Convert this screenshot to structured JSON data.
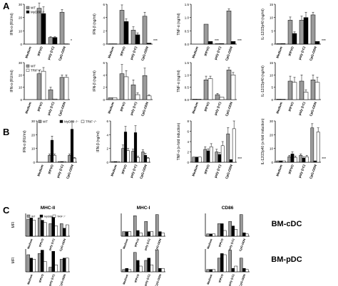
{
  "panels": [
    {
      "label": "A"
    },
    {
      "label": "B"
    },
    {
      "label": "C"
    }
  ],
  "chart_data": [
    {
      "id": "A1",
      "type": "bar",
      "ylabel": "IFN-α (RU/ml)",
      "ylim": [
        0,
        30
      ],
      "yticks": [
        "0",
        "10",
        "20",
        "30"
      ],
      "yticks_vals": [
        0,
        10,
        20,
        30
      ],
      "categories": [
        "Medium",
        "IPPVO",
        "poly (I:C)",
        "CpG-ODN"
      ],
      "legend": [
        "WT",
        "MyD88⁻/⁻"
      ],
      "series": [
        {
          "name": "WT",
          "values": [
            0,
            27,
            5,
            24
          ],
          "err": [
            0,
            4,
            0.5,
            2
          ]
        },
        {
          "name": "MyD88⁻/⁻",
          "values": [
            0,
            23,
            5,
            0.2
          ],
          "err": [
            0,
            5,
            0.5,
            0
          ]
        }
      ],
      "annot": {
        "3": "*"
      }
    },
    {
      "id": "A2",
      "type": "bar",
      "ylabel": "IFN-β (ng/ml)",
      "ylim": [
        0,
        6
      ],
      "yticks": [
        "0",
        "2",
        "4",
        "6"
      ],
      "yticks_vals": [
        0,
        2,
        4,
        6
      ],
      "categories": [
        "Medium",
        "IPPVO",
        "poly (I:C)",
        "CpG-ODN"
      ],
      "series": [
        {
          "name": "WT",
          "values": [
            0.05,
            5.1,
            2.1,
            4.2
          ],
          "err": [
            0,
            0.8,
            0.5,
            0.6
          ]
        },
        {
          "name": "MyD88⁻/⁻",
          "values": [
            0.05,
            3.4,
            1.4,
            0.15
          ],
          "err": [
            0,
            0.4,
            0.3,
            0
          ]
        }
      ],
      "annot": {
        "3": "***"
      }
    },
    {
      "id": "A3",
      "type": "bar",
      "ylabel": "TNF-α (ng/ml)",
      "ylim": [
        0,
        1.5
      ],
      "yticks": [
        "0.0",
        "0.5",
        "1.0",
        "1.5"
      ],
      "yticks_vals": [
        0,
        0.5,
        1.0,
        1.5
      ],
      "categories": [
        "Medium",
        "IPPVO",
        "poly (I:C)",
        "CpG-ODN"
      ],
      "series": [
        {
          "name": "WT",
          "values": [
            0,
            0.75,
            0.02,
            1.25
          ],
          "err": [
            0,
            0,
            0,
            0.08
          ]
        },
        {
          "name": "MyD88⁻/⁻",
          "values": [
            0,
            0.1,
            0.02,
            0.1
          ],
          "err": [
            0,
            0,
            0,
            0
          ]
        }
      ],
      "annot": {
        "1": "***",
        "3": "***"
      }
    },
    {
      "id": "A4",
      "type": "bar",
      "ylabel": "IL-12/23p40 (ng/ml)",
      "ylim": [
        0,
        15
      ],
      "yticks": [
        "0",
        "5",
        "10",
        "15"
      ],
      "yticks_vals": [
        0,
        5,
        10,
        15
      ],
      "categories": [
        "Medium",
        "IPPVO",
        "poly (I:C)",
        "CpG-ODN"
      ],
      "series": [
        {
          "name": "WT",
          "values": [
            0.2,
            9,
            9,
            11
          ],
          "err": [
            0,
            1.2,
            1.5,
            1
          ]
        },
        {
          "name": "MyD88⁻/⁻",
          "values": [
            0.2,
            4,
            10,
            1
          ],
          "err": [
            0,
            0.6,
            2,
            0
          ]
        }
      ],
      "annot": {
        "3": "***"
      }
    },
    {
      "id": "A5",
      "type": "bar",
      "ylabel": "IFN-α (RU/ml)",
      "ylim": [
        0,
        30
      ],
      "yticks": [
        "0",
        "10",
        "20",
        "30"
      ],
      "yticks_vals": [
        0,
        10,
        20,
        30
      ],
      "categories": [
        "Medium",
        "IPPVO",
        "poly (I:C)",
        "CpG-ODN"
      ],
      "legend": [
        "WT",
        "TRIF⁻/⁻"
      ],
      "series": [
        {
          "name": "WT",
          "values": [
            0,
            21,
            8,
            18
          ],
          "err": [
            0,
            3,
            2,
            2
          ]
        },
        {
          "name": "TRIF⁻/⁻",
          "values": [
            0,
            23,
            0.5,
            18
          ],
          "err": [
            0,
            3,
            0,
            2
          ]
        }
      ]
    },
    {
      "id": "A6",
      "type": "bar",
      "ylabel": "IFN-β (ng/ml)",
      "ylim": [
        0,
        6
      ],
      "yticks": [
        "0",
        "2",
        "4",
        "6"
      ],
      "yticks_vals": [
        0,
        2,
        4,
        6
      ],
      "categories": [
        "Medium",
        "IPPVO",
        "poly (I:C)",
        "CpG-ODN"
      ],
      "series": [
        {
          "name": "WT",
          "values": [
            0.3,
            4.2,
            2.4,
            3.9
          ],
          "err": [
            0,
            1.5,
            0.8,
            1.2
          ]
        },
        {
          "name": "TRIF⁻/⁻",
          "values": [
            0.3,
            3.7,
            0.8,
            0.6
          ],
          "err": [
            0,
            1,
            0.3,
            0.2
          ]
        }
      ]
    },
    {
      "id": "A7",
      "type": "bar",
      "ylabel": "TNF-α (ng/ml)",
      "ylim": [
        0,
        1.5
      ],
      "yticks": [
        "0.0",
        "0.5",
        "1.0",
        "1.5"
      ],
      "yticks_vals": [
        0,
        0.5,
        1.0,
        1.5
      ],
      "categories": [
        "Medium",
        "IPPVO",
        "poly (I:C)",
        "CpG-ODN"
      ],
      "series": [
        {
          "name": "WT",
          "values": [
            0.02,
            0.8,
            0.2,
            1.2
          ],
          "err": [
            0,
            0.15,
            0.05,
            0.1
          ]
        },
        {
          "name": "TRIF⁻/⁻",
          "values": [
            0.02,
            0.85,
            0.1,
            1.0
          ],
          "err": [
            0,
            0.1,
            0,
            0.1
          ]
        }
      ]
    },
    {
      "id": "A8",
      "type": "bar",
      "ylabel": "IL-12/23p40 (ng/ml)",
      "ylim": [
        0,
        15
      ],
      "yticks": [
        "0",
        "5",
        "10",
        "15"
      ],
      "yticks_vals": [
        0,
        5,
        10,
        15
      ],
      "categories": [
        "Medium",
        "IPPVO",
        "poly (I:C)",
        "CpG-ODN"
      ],
      "series": [
        {
          "name": "WT",
          "values": [
            0.2,
            7.5,
            7.5,
            8
          ],
          "err": [
            0,
            2,
            2.5,
            2
          ]
        },
        {
          "name": "TRIF⁻/⁻",
          "values": [
            0.2,
            7,
            3,
            7
          ],
          "err": [
            0,
            2,
            1,
            2
          ]
        }
      ]
    },
    {
      "id": "B1",
      "type": "bar",
      "ylabel": "IFN-α (RU/ml)",
      "ylim": [
        0,
        30
      ],
      "yticks": [
        "0",
        "10",
        "20",
        "30"
      ],
      "yticks_vals": [
        0,
        10,
        20,
        30
      ],
      "categories": [
        "Medium",
        "IPPVO",
        "poly (I:C)",
        "CpG-ODN"
      ],
      "legend": [
        "WT",
        "MyD88⁻/⁻",
        "TRIF⁻/⁻"
      ],
      "series": [
        {
          "name": "WT",
          "values": [
            0,
            5,
            0.5,
            5
          ],
          "err": [
            0,
            1,
            0,
            1
          ]
        },
        {
          "name": "MyD88⁻/⁻",
          "values": [
            0,
            16,
            0.5,
            24
          ],
          "err": [
            0,
            3,
            0,
            6
          ]
        },
        {
          "name": "TRIF⁻/⁻",
          "values": [
            0,
            5,
            0.5,
            3
          ],
          "err": [
            0,
            1,
            0,
            0.5
          ]
        }
      ]
    },
    {
      "id": "B2",
      "type": "bar",
      "ylabel": "IFN-β (ng/ml)",
      "ylim": [
        0,
        6
      ],
      "yticks": [
        "0",
        "2",
        "4",
        "6"
      ],
      "yticks_vals": [
        0,
        2,
        4,
        6
      ],
      "categories": [
        "Medium",
        "IPPVO",
        "poly (I:C)",
        "CpG-ODN"
      ],
      "series": [
        {
          "name": "WT",
          "values": [
            0.1,
            2.0,
            1.6,
            1.5
          ],
          "err": [
            0,
            0.5,
            0.3,
            0.3
          ]
        },
        {
          "name": "MyD88⁻/⁻",
          "values": [
            0.1,
            4.4,
            4.3,
            1.0
          ],
          "err": [
            0,
            0.8,
            1.0,
            0.3
          ]
        },
        {
          "name": "TRIF⁻/⁻",
          "values": [
            0.1,
            1.7,
            0.7,
            0.6
          ],
          "err": [
            0,
            0.3,
            0.2,
            0.1
          ]
        }
      ]
    },
    {
      "id": "B3",
      "type": "bar",
      "ylabel": "TNF-α (x-fold induction)",
      "ylim": [
        0,
        8
      ],
      "yticks": [
        "0",
        "2",
        "4",
        "6",
        "8"
      ],
      "yticks_vals": [
        0,
        2,
        4,
        6,
        8
      ],
      "categories": [
        "Medium",
        "IPPVO",
        "poly (I:C)",
        "CpG-ODN"
      ],
      "series": [
        {
          "name": "WT",
          "values": [
            1,
            2.5,
            2,
            5.5
          ],
          "err": [
            0,
            0.5,
            0.5,
            1.2
          ]
        },
        {
          "name": "MyD88⁻/⁻",
          "values": [
            1,
            2.2,
            1.5,
            0.5
          ],
          "err": [
            0,
            0.4,
            0.4,
            0
          ]
        },
        {
          "name": "TRIF⁻/⁻",
          "values": [
            1,
            3,
            3.2,
            6.5
          ],
          "err": [
            0,
            0.6,
            0.8,
            1.5
          ]
        }
      ],
      "annot": {
        "3": "***"
      }
    },
    {
      "id": "B4",
      "type": "bar",
      "ylabel": "IL-12/23p40 (x-fold induction)",
      "ylim": [
        0,
        30
      ],
      "yticks": [
        "0",
        "10",
        "20",
        "30"
      ],
      "yticks_vals": [
        0,
        10,
        20,
        30
      ],
      "categories": [
        "Medium",
        "IPPVO",
        "poly (I:C)",
        "CpG-ODN"
      ],
      "series": [
        {
          "name": "WT",
          "values": [
            1,
            4,
            5,
            25
          ],
          "err": [
            0,
            1,
            1,
            3
          ]
        },
        {
          "name": "MyD88⁻/⁻",
          "values": [
            1,
            6,
            3,
            1
          ],
          "err": [
            0,
            1.5,
            1,
            0
          ]
        },
        {
          "name": "TRIF⁻/⁻",
          "values": [
            1,
            3.5,
            4,
            22
          ],
          "err": [
            0,
            1,
            1,
            3
          ]
        }
      ],
      "annot": {
        "3": "***"
      }
    },
    {
      "id": "C1",
      "type": "bar",
      "title": "MHC-II",
      "ylabel": "MFI",
      "ylim": [
        0,
        1
      ],
      "categories": [
        "Medium",
        "IPPVO",
        "poly (I:C)",
        "CpG-ODN"
      ],
      "legend": [
        "WT",
        "MyD88⁻/⁻",
        "TRIF⁻/⁻"
      ],
      "series": [
        {
          "name": "WT",
          "values": [
            0.75,
            0.8,
            0.55,
            0.55
          ]
        },
        {
          "name": "MyD88⁻/⁻",
          "values": [
            0.8,
            0.7,
            0.85,
            0.35
          ]
        },
        {
          "name": "TRIF⁻/⁻",
          "values": [
            0.7,
            0.6,
            0.45,
            0.5
          ]
        }
      ],
      "row_label": "BM-cDC"
    },
    {
      "id": "C2",
      "type": "bar",
      "title": "MHC-I",
      "ylabel": "",
      "ylim": [
        0,
        1
      ],
      "categories": [
        "Medium",
        "IPPVO",
        "poly (I:C)",
        "CpG-ODN"
      ],
      "series": [
        {
          "name": "WT",
          "values": [
            0.2,
            0.9,
            0.65,
            0.95
          ]
        },
        {
          "name": "MyD88⁻/⁻",
          "values": [
            0.2,
            0.25,
            0.2,
            0.2
          ]
        },
        {
          "name": "TRIF⁻/⁻",
          "values": [
            0.2,
            0.15,
            0.2,
            0.15
          ]
        }
      ]
    },
    {
      "id": "C3",
      "type": "bar",
      "title": "CD86",
      "ylabel": "",
      "ylim": [
        0,
        1
      ],
      "categories": [
        "Medium",
        "IPPVO",
        "poly (I:C)",
        "CpG-ODN"
      ],
      "series": [
        {
          "name": "WT",
          "values": [
            0.1,
            0.55,
            0.65,
            0.95
          ]
        },
        {
          "name": "MyD88⁻/⁻",
          "values": [
            0.1,
            0.55,
            0.45,
            0.15
          ]
        },
        {
          "name": "TRIF⁻/⁻",
          "values": [
            0.1,
            0.25,
            0.3,
            0.1
          ]
        }
      ]
    },
    {
      "id": "C4",
      "type": "bar",
      "ylabel": "MFI",
      "ylim": [
        0,
        1
      ],
      "categories": [
        "Medium",
        "IPPVO",
        "poly (I:C)",
        "CpG-ODN"
      ],
      "series": [
        {
          "name": "WT",
          "values": [
            0.75,
            0.8,
            0.2,
            0.55
          ]
        },
        {
          "name": "MyD88⁻/⁻",
          "values": [
            0.6,
            0.95,
            0.9,
            0.6
          ]
        },
        {
          "name": "TRIF⁻/⁻",
          "values": [
            0.55,
            0.45,
            0.3,
            0.6
          ]
        }
      ],
      "row_label": "BM-pDC"
    },
    {
      "id": "C5",
      "type": "bar",
      "ylabel": "",
      "ylim": [
        0,
        1
      ],
      "categories": [
        "Medium",
        "IPPVO",
        "poly (I:C)",
        "CpG-ODN"
      ],
      "series": [
        {
          "name": "WT",
          "values": [
            0.1,
            0.85,
            0.5,
            0.95
          ]
        },
        {
          "name": "MyD88⁻/⁻",
          "values": [
            0.15,
            0.5,
            0.6,
            0.15
          ]
        },
        {
          "name": "TRIF⁻/⁻",
          "values": [
            0.1,
            0.25,
            0.3,
            0.15
          ]
        }
      ]
    },
    {
      "id": "C6",
      "type": "bar",
      "ylabel": "",
      "ylim": [
        0,
        1
      ],
      "categories": [
        "Medium",
        "IPPVO",
        "poly (I:C)",
        "CpG-ODN"
      ],
      "series": [
        {
          "name": "WT",
          "values": [
            0.1,
            0.6,
            0.95,
            0.6
          ]
        },
        {
          "name": "MyD88⁻/⁻",
          "values": [
            0.1,
            0.8,
            0.15,
            0.15
          ]
        },
        {
          "name": "TRIF⁻/⁻",
          "values": [
            0.1,
            0.75,
            0.25,
            0.1
          ]
        }
      ]
    }
  ],
  "colors": {
    "WT": "#9a9a9a",
    "MyD88⁻/⁻": "#000000",
    "TRIF⁻/⁻": "#ffffff"
  }
}
